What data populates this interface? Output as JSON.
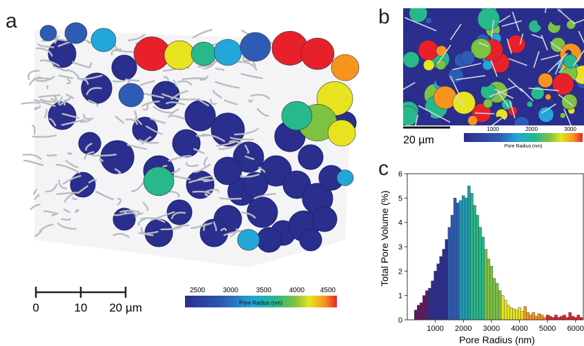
{
  "panels": {
    "a": "a",
    "b": "b",
    "c": "c"
  },
  "panel_a": {
    "scale_bar": {
      "ticks": [
        "0",
        "10",
        "20 µm"
      ]
    },
    "colorbar": {
      "ticks": [
        "2500",
        "3000",
        "3500",
        "4000",
        "4500"
      ],
      "label": "Pore Radius (nm)"
    }
  },
  "panel_b": {
    "scale_bar_label": "20 µm",
    "colorbar": {
      "ticks": [
        "1000",
        "2000",
        "3000"
      ],
      "label": "Pore Radius (nm)"
    }
  },
  "colors": {
    "fiber": "#b9bcc0",
    "pore_dark": "#2a2f8e",
    "palette": [
      "#2b2e8c",
      "#2d5bb5",
      "#23a6d9",
      "#27b98b",
      "#7ec242",
      "#e7e41f",
      "#f7941d",
      "#e8202a"
    ]
  },
  "chart_data": {
    "type": "bar",
    "xlabel": "Pore Radius (nm)",
    "ylabel": "Total Pore Volume (%)",
    "xlim": [
      0,
      6300
    ],
    "ylim": [
      0,
      6
    ],
    "xticks": [
      1000,
      2000,
      3000,
      4000,
      5000,
      6000
    ],
    "yticks": [
      0,
      1,
      2,
      3,
      4,
      5,
      6
    ],
    "bin_width": 100,
    "x": [
      300,
      400,
      500,
      600,
      700,
      800,
      900,
      1000,
      1100,
      1200,
      1300,
      1400,
      1500,
      1600,
      1700,
      1800,
      1900,
      2000,
      2100,
      2200,
      2300,
      2400,
      2500,
      2600,
      2700,
      2800,
      2900,
      3000,
      3100,
      3200,
      3300,
      3400,
      3500,
      3600,
      3700,
      3800,
      3900,
      4000,
      4100,
      4200,
      4300,
      4400,
      4500,
      4600,
      4700,
      4800,
      4900,
      5000,
      5100,
      5200,
      5300,
      5400,
      5500,
      5600,
      5700,
      5800,
      5900,
      6000,
      6100,
      6200
    ],
    "values": [
      0.4,
      0.6,
      0.7,
      1.0,
      1.2,
      1.3,
      1.6,
      2.0,
      2.3,
      2.6,
      2.9,
      3.3,
      3.8,
      4.3,
      5.0,
      4.8,
      4.9,
      5.1,
      5.0,
      5.5,
      5.2,
      4.7,
      4.3,
      3.8,
      3.4,
      2.9,
      2.5,
      2.2,
      1.7,
      1.5,
      1.2,
      1.0,
      0.8,
      0.6,
      0.5,
      0.45,
      0.4,
      0.5,
      0.35,
      0.55,
      0.3,
      0.2,
      0.3,
      0.15,
      0.25,
      0.2,
      0.1,
      0.2,
      0.15,
      0.1,
      0.2,
      0.1,
      0.15,
      0.2,
      0.1,
      0.3,
      0.15,
      0.1,
      0.2,
      0.1
    ]
  }
}
